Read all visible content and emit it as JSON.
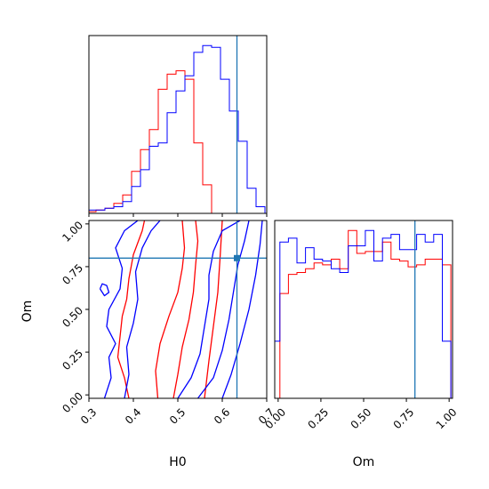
{
  "chart_data": {
    "type": "corner",
    "colors": {
      "series_a": "#ff0000",
      "series_b": "#0000ff",
      "truth": "#1f77b4"
    },
    "parameters": [
      {
        "name": "H0",
        "range": [
          0.3,
          0.7
        ],
        "ticks": [
          "0.3",
          "0.4",
          "0.5",
          "0.6",
          "0.7"
        ],
        "truth": 0.633
      },
      {
        "name": "Om",
        "range": [
          -0.02,
          1.02
        ],
        "ticks": [
          "0.00",
          "0.25",
          "0.50",
          "0.75",
          "1.00"
        ],
        "truth": 0.8
      }
    ],
    "histograms": {
      "H0": {
        "bin_edges": [
          0.296,
          0.316,
          0.336,
          0.356,
          0.376,
          0.396,
          0.416,
          0.436,
          0.456,
          0.476,
          0.496,
          0.516,
          0.536,
          0.556,
          0.576,
          0.596,
          0.616,
          0.636,
          0.656,
          0.676,
          0.696,
          0.716
        ],
        "series": [
          {
            "color": "red",
            "counts": [
              1,
              2,
              3,
              6,
              11,
              25,
              38,
              50,
              74,
              83,
              85,
              80,
              42,
              17,
              0,
              0,
              0,
              0,
              0,
              0,
              0
            ]
          },
          {
            "color": "blue",
            "counts": [
              2,
              2,
              3,
              4,
              7,
              16,
              26,
              40,
              42,
              60,
              73,
              82,
              96,
              100,
              99,
              80,
              61,
              43,
              15,
              4,
              0
            ]
          }
        ]
      },
      "Om": {
        "bin_edges": [
          -0.04,
          0.01,
          0.06,
          0.11,
          0.16,
          0.21,
          0.26,
          0.31,
          0.36,
          0.41,
          0.46,
          0.51,
          0.56,
          0.61,
          0.66,
          0.71,
          0.76,
          0.81,
          0.86,
          0.91,
          0.96,
          1.01
        ],
        "series": [
          {
            "color": "red",
            "counts": [
              0,
              55,
              65,
              66,
              68,
              71,
              70,
              73,
              68,
              88,
              76,
              77,
              77,
              82,
              73,
              72,
              69,
              70,
              73,
              73,
              70
            ]
          },
          {
            "color": "blue",
            "counts": [
              30,
              82,
              84,
              71,
              79,
              73,
              72,
              68,
              66,
              80,
              80,
              88,
              72,
              84,
              86,
              78,
              78,
              86,
              82,
              86,
              30
            ]
          }
        ]
      }
    },
    "contours_2d": {
      "x_param": "H0",
      "y_param": "Om",
      "lines": [
        {
          "color": "red",
          "points": [
            [
              0.39,
              -0.02
            ],
            [
              0.38,
              0.1
            ],
            [
              0.365,
              0.22
            ],
            [
              0.37,
              0.34
            ],
            [
              0.375,
              0.46
            ],
            [
              0.385,
              0.56
            ],
            [
              0.39,
              0.68
            ],
            [
              0.4,
              0.82
            ],
            [
              0.42,
              0.96
            ],
            [
              0.425,
              1.02
            ]
          ]
        },
        {
          "color": "red",
          "points": [
            [
              0.455,
              -0.02
            ],
            [
              0.45,
              0.14
            ],
            [
              0.46,
              0.3
            ],
            [
              0.48,
              0.46
            ],
            [
              0.5,
              0.6
            ],
            [
              0.51,
              0.74
            ],
            [
              0.515,
              0.86
            ],
            [
              0.51,
              1.02
            ]
          ]
        },
        {
          "color": "red",
          "points": [
            [
              0.49,
              -0.02
            ],
            [
              0.5,
              0.12
            ],
            [
              0.51,
              0.28
            ],
            [
              0.525,
              0.44
            ],
            [
              0.535,
              0.6
            ],
            [
              0.54,
              0.76
            ],
            [
              0.545,
              0.9
            ],
            [
              0.54,
              1.02
            ]
          ]
        },
        {
          "color": "red",
          "points": [
            [
              0.56,
              -0.02
            ],
            [
              0.57,
              0.2
            ],
            [
              0.58,
              0.4
            ],
            [
              0.59,
              0.6
            ],
            [
              0.595,
              0.8
            ],
            [
              0.6,
              1.02
            ]
          ]
        },
        {
          "color": "blue",
          "points": [
            [
              0.335,
              -0.02
            ],
            [
              0.35,
              0.1
            ],
            [
              0.345,
              0.22
            ],
            [
              0.36,
              0.3
            ],
            [
              0.34,
              0.4
            ],
            [
              0.345,
              0.5
            ],
            [
              0.37,
              0.62
            ],
            [
              0.375,
              0.74
            ],
            [
              0.36,
              0.86
            ],
            [
              0.38,
              0.96
            ],
            [
              0.41,
              1.02
            ]
          ]
        },
        {
          "color": "blue",
          "points": [
            [
              0.38,
              -0.02
            ],
            [
              0.39,
              0.12
            ],
            [
              0.385,
              0.28
            ],
            [
              0.4,
              0.42
            ],
            [
              0.41,
              0.56
            ],
            [
              0.405,
              0.72
            ],
            [
              0.42,
              0.86
            ],
            [
              0.44,
              0.96
            ],
            [
              0.46,
              1.02
            ]
          ]
        },
        {
          "color": "blue",
          "points": [
            [
              0.5,
              -0.02
            ],
            [
              0.53,
              0.1
            ],
            [
              0.55,
              0.24
            ],
            [
              0.56,
              0.4
            ],
            [
              0.57,
              0.56
            ],
            [
              0.57,
              0.7
            ],
            [
              0.58,
              0.84
            ],
            [
              0.6,
              0.96
            ],
            [
              0.64,
              1.02
            ]
          ]
        },
        {
          "color": "blue",
          "points": [
            [
              0.545,
              -0.02
            ],
            [
              0.58,
              0.1
            ],
            [
              0.6,
              0.26
            ],
            [
              0.615,
              0.44
            ],
            [
              0.625,
              0.6
            ],
            [
              0.635,
              0.76
            ],
            [
              0.65,
              0.9
            ],
            [
              0.66,
              1.02
            ]
          ]
        },
        {
          "color": "blue",
          "points": [
            [
              0.6,
              -0.02
            ],
            [
              0.62,
              0.12
            ],
            [
              0.64,
              0.3
            ],
            [
              0.66,
              0.5
            ],
            [
              0.675,
              0.7
            ],
            [
              0.685,
              0.88
            ],
            [
              0.69,
              1.02
            ]
          ]
        },
        {
          "color": "blue",
          "points": [
            [
              0.325,
              0.62
            ],
            [
              0.335,
              0.58
            ],
            [
              0.345,
              0.6
            ],
            [
              0.34,
              0.64
            ],
            [
              0.33,
              0.65
            ],
            [
              0.325,
              0.62
            ]
          ]
        }
      ]
    }
  }
}
